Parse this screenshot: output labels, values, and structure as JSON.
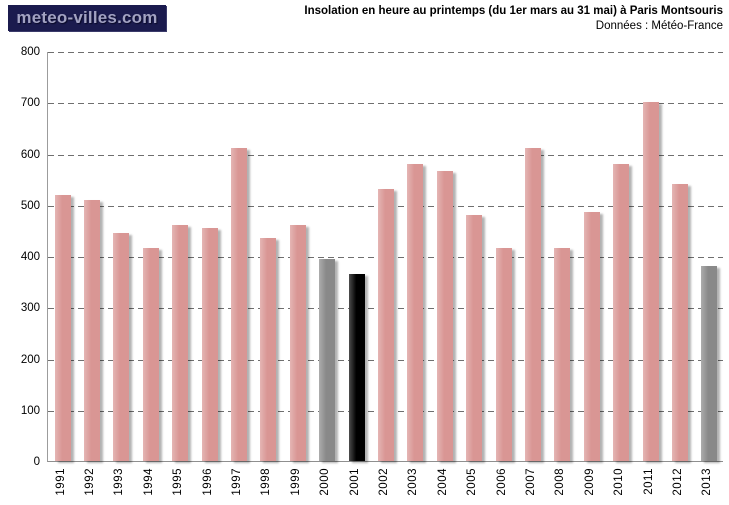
{
  "logo": {
    "text": "meteo-villes.com",
    "bg_color": "#1b1b4e",
    "text_color": "#a2a2c2"
  },
  "header": {
    "title": "Insolation en heure au printemps (du 1er mars au 31 mai) à Paris Montsouris",
    "subtitle": "Données : Météo-France"
  },
  "chart_data": {
    "type": "bar",
    "title": "Insolation en heure au printemps (du 1er mars au 31 mai) à Paris Montsouris",
    "subtitle": "Données : Météo-France",
    "xlabel": "",
    "ylabel": "",
    "categories": [
      "1991",
      "1992",
      "1993",
      "1994",
      "1995",
      "1996",
      "1997",
      "1998",
      "1999",
      "2000",
      "2001",
      "2002",
      "2003",
      "2004",
      "2005",
      "2006",
      "2007",
      "2008",
      "2009",
      "2010",
      "2011",
      "2012",
      "2013"
    ],
    "values": [
      520,
      510,
      445,
      415,
      460,
      455,
      610,
      435,
      460,
      395,
      365,
      530,
      580,
      565,
      480,
      415,
      610,
      415,
      485,
      580,
      700,
      540,
      380
    ],
    "colors": [
      "#d99694",
      "#d99694",
      "#d99694",
      "#d99694",
      "#d99694",
      "#d99694",
      "#d99694",
      "#d99694",
      "#d99694",
      "#898989",
      "#000000",
      "#d99694",
      "#d99694",
      "#d99694",
      "#d99694",
      "#d99694",
      "#d99694",
      "#d99694",
      "#d99694",
      "#d99694",
      "#d99694",
      "#d99694",
      "#898989"
    ],
    "default_bar_color": "#d99694",
    "highlight_colors": {
      "2000": "#898989",
      "2001": "#000000",
      "2013": "#898989"
    },
    "ylim": [
      0,
      800
    ],
    "ytick_step": 100,
    "grid": "horizontal-dashed",
    "legend": "none"
  }
}
